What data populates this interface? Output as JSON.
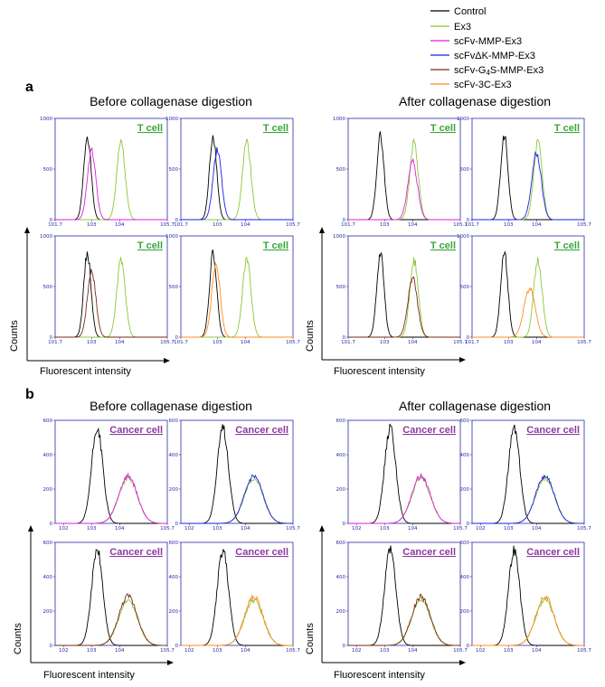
{
  "legend": [
    {
      "label": "Control",
      "color": "#000000"
    },
    {
      "label": "Ex3",
      "color": "#8cc83c"
    },
    {
      "label": "scFv-MMP-Ex3",
      "color": "#e01ee0"
    },
    {
      "label": "scFvΔK-MMP-Ex3",
      "color": "#1e1ee6"
    },
    {
      "label": "scFv-G4S-MMP-Ex3",
      "color": "#7a2a14"
    },
    {
      "label": "scFv-3C-Ex3",
      "color": "#ff8c1e"
    }
  ],
  "sections": {
    "a": {
      "letter": "a",
      "before_title": "Before collagenase digestion",
      "after_title": "After collagenase digestion",
      "cell_label": "T cell",
      "cell_label_color": "#3aa63a"
    },
    "b": {
      "letter": "b",
      "before_title": "Before collagenase digestion",
      "after_title": "After collagenase digestion",
      "cell_label": "Cancer cell",
      "cell_label_color": "#8c3aa0"
    }
  },
  "axis_titles": {
    "x": "Fluorescent intensity",
    "y": "Counts"
  },
  "chart_data": [
    {
      "type": "histogram",
      "section": "a",
      "group": "before",
      "row": 0,
      "col": 0,
      "cell": "T cell",
      "x_scale": "log",
      "xlim_log10": [
        1.7,
        5.7
      ],
      "ylim": [
        0,
        1000
      ],
      "yticks": [
        0,
        500,
        1000
      ],
      "xtick_labels": [
        "10^1.7",
        "10^3",
        "10^4",
        "10^5.7"
      ],
      "series": [
        {
          "name": "Control",
          "peak_log10": 2.85,
          "peak_count": 830,
          "width": 0.13
        },
        {
          "name": "Ex3",
          "peak_log10": 4.05,
          "peak_count": 760,
          "width": 0.15
        },
        {
          "name": "scFv-MMP-Ex3",
          "peak_log10": 3.0,
          "peak_count": 680,
          "width": 0.15
        }
      ]
    },
    {
      "type": "histogram",
      "section": "a",
      "group": "before",
      "row": 0,
      "col": 1,
      "cell": "T cell",
      "x_scale": "log",
      "xlim_log10": [
        1.7,
        5.7
      ],
      "ylim": [
        0,
        1000
      ],
      "yticks": [
        0,
        500,
        1000
      ],
      "xtick_labels": [
        "10^1.7",
        "10^3",
        "10^4",
        "10^5.7"
      ],
      "series": [
        {
          "name": "Control",
          "peak_log10": 2.85,
          "peak_count": 830,
          "width": 0.13
        },
        {
          "name": "Ex3",
          "peak_log10": 4.05,
          "peak_count": 760,
          "width": 0.15
        },
        {
          "name": "scFvΔK-MMP-Ex3",
          "peak_log10": 3.0,
          "peak_count": 700,
          "width": 0.15
        }
      ]
    },
    {
      "type": "histogram",
      "section": "a",
      "group": "before",
      "row": 1,
      "col": 0,
      "cell": "T cell",
      "x_scale": "log",
      "xlim_log10": [
        1.7,
        5.7
      ],
      "ylim": [
        0,
        1000
      ],
      "yticks": [
        0,
        500,
        1000
      ],
      "xtick_labels": [
        "10^1.7",
        "10^3",
        "10^4",
        "10^5.7"
      ],
      "series": [
        {
          "name": "Control",
          "peak_log10": 2.85,
          "peak_count": 830,
          "width": 0.13
        },
        {
          "name": "Ex3",
          "peak_log10": 4.05,
          "peak_count": 760,
          "width": 0.15
        },
        {
          "name": "scFv-G4S-MMP-Ex3",
          "peak_log10": 3.0,
          "peak_count": 660,
          "width": 0.15
        }
      ]
    },
    {
      "type": "histogram",
      "section": "a",
      "group": "before",
      "row": 1,
      "col": 1,
      "cell": "T cell",
      "x_scale": "log",
      "xlim_log10": [
        1.7,
        5.7
      ],
      "ylim": [
        0,
        1000
      ],
      "yticks": [
        0,
        500,
        1000
      ],
      "xtick_labels": [
        "10^1.7",
        "10^3",
        "10^4",
        "10^5.7"
      ],
      "series": [
        {
          "name": "Control",
          "peak_log10": 2.85,
          "peak_count": 830,
          "width": 0.13
        },
        {
          "name": "Ex3",
          "peak_log10": 4.05,
          "peak_count": 760,
          "width": 0.15
        },
        {
          "name": "scFv-3C-Ex3",
          "peak_log10": 2.95,
          "peak_count": 720,
          "width": 0.15
        }
      ]
    },
    {
      "type": "histogram",
      "section": "a",
      "group": "after",
      "row": 0,
      "col": 0,
      "cell": "T cell",
      "x_scale": "log",
      "xlim_log10": [
        1.7,
        5.7
      ],
      "ylim": [
        0,
        1000
      ],
      "yticks": [
        0,
        500,
        1000
      ],
      "xtick_labels": [
        "10^1.7",
        "10^3",
        "10^4",
        "10^5.7"
      ],
      "series": [
        {
          "name": "Control",
          "peak_log10": 2.85,
          "peak_count": 830,
          "width": 0.13
        },
        {
          "name": "Ex3",
          "peak_log10": 4.05,
          "peak_count": 760,
          "width": 0.15
        },
        {
          "name": "scFv-MMP-Ex3",
          "peak_log10": 4.0,
          "peak_count": 580,
          "width": 0.17
        }
      ]
    },
    {
      "type": "histogram",
      "section": "a",
      "group": "after",
      "row": 0,
      "col": 1,
      "cell": "T cell",
      "x_scale": "log",
      "xlim_log10": [
        1.7,
        5.7
      ],
      "ylim": [
        0,
        1000
      ],
      "yticks": [
        0,
        500,
        1000
      ],
      "xtick_labels": [
        "10^1.7",
        "10^3",
        "10^4",
        "10^5.7"
      ],
      "series": [
        {
          "name": "Control",
          "peak_log10": 2.85,
          "peak_count": 830,
          "width": 0.13
        },
        {
          "name": "Ex3",
          "peak_log10": 4.05,
          "peak_count": 760,
          "width": 0.15
        },
        {
          "name": "scFvΔK-MMP-Ex3",
          "peak_log10": 4.0,
          "peak_count": 650,
          "width": 0.17
        }
      ]
    },
    {
      "type": "histogram",
      "section": "a",
      "group": "after",
      "row": 1,
      "col": 0,
      "cell": "T cell",
      "x_scale": "log",
      "xlim_log10": [
        1.7,
        5.7
      ],
      "ylim": [
        0,
        1000
      ],
      "yticks": [
        0,
        500,
        1000
      ],
      "xtick_labels": [
        "10^1.7",
        "10^3",
        "10^4",
        "10^5.7"
      ],
      "series": [
        {
          "name": "Control",
          "peak_log10": 2.85,
          "peak_count": 830,
          "width": 0.13
        },
        {
          "name": "Ex3",
          "peak_log10": 4.05,
          "peak_count": 760,
          "width": 0.15
        },
        {
          "name": "scFv-G4S-MMP-Ex3",
          "peak_log10": 4.0,
          "peak_count": 580,
          "width": 0.17
        }
      ]
    },
    {
      "type": "histogram",
      "section": "a",
      "group": "after",
      "row": 1,
      "col": 1,
      "cell": "T cell",
      "x_scale": "log",
      "xlim_log10": [
        1.7,
        5.7
      ],
      "ylim": [
        0,
        1000
      ],
      "yticks": [
        0,
        500,
        1000
      ],
      "xtick_labels": [
        "10^1.7",
        "10^3",
        "10^4",
        "10^5.7"
      ],
      "series": [
        {
          "name": "Control",
          "peak_log10": 2.85,
          "peak_count": 830,
          "width": 0.13
        },
        {
          "name": "Ex3",
          "peak_log10": 4.05,
          "peak_count": 760,
          "width": 0.15
        },
        {
          "name": "scFv-3C-Ex3",
          "peak_log10": 3.75,
          "peak_count": 480,
          "width": 0.2
        }
      ]
    },
    {
      "type": "histogram",
      "section": "b",
      "group": "before",
      "row": 0,
      "col": 0,
      "cell": "Cancer cell",
      "x_scale": "log",
      "xlim_log10": [
        1.7,
        5.7
      ],
      "ylim": [
        0,
        600
      ],
      "yticks": [
        0,
        200,
        400,
        600
      ],
      "xtick_labels": [
        "10^2",
        "10^3",
        "10^4",
        "10^5.7"
      ],
      "series": [
        {
          "name": "Control",
          "peak_log10": 3.2,
          "peak_count": 555,
          "width": 0.2
        },
        {
          "name": "Ex3",
          "peak_log10": 4.3,
          "peak_count": 265,
          "width": 0.33
        },
        {
          "name": "scFv-MMP-Ex3",
          "peak_log10": 4.3,
          "peak_count": 275,
          "width": 0.33
        }
      ]
    },
    {
      "type": "histogram",
      "section": "b",
      "group": "before",
      "row": 0,
      "col": 1,
      "cell": "Cancer cell",
      "x_scale": "log",
      "xlim_log10": [
        1.7,
        5.7
      ],
      "ylim": [
        0,
        600
      ],
      "yticks": [
        0,
        200,
        400,
        600
      ],
      "xtick_labels": [
        "10^2",
        "10^3",
        "10^4",
        "10^5.7"
      ],
      "series": [
        {
          "name": "Control",
          "peak_log10": 3.2,
          "peak_count": 555,
          "width": 0.2
        },
        {
          "name": "Ex3",
          "peak_log10": 4.3,
          "peak_count": 265,
          "width": 0.33
        },
        {
          "name": "scFvΔK-MMP-Ex3",
          "peak_log10": 4.3,
          "peak_count": 275,
          "width": 0.33
        }
      ]
    },
    {
      "type": "histogram",
      "section": "b",
      "group": "before",
      "row": 1,
      "col": 0,
      "cell": "Cancer cell",
      "x_scale": "log",
      "xlim_log10": [
        1.7,
        5.7
      ],
      "ylim": [
        0,
        600
      ],
      "yticks": [
        0,
        200,
        400,
        600
      ],
      "xtick_labels": [
        "10^2",
        "10^3",
        "10^4",
        "10^5.7"
      ],
      "series": [
        {
          "name": "Control",
          "peak_log10": 3.2,
          "peak_count": 555,
          "width": 0.2
        },
        {
          "name": "Ex3",
          "peak_log10": 4.3,
          "peak_count": 265,
          "width": 0.33
        },
        {
          "name": "scFv-G4S-MMP-Ex3",
          "peak_log10": 4.3,
          "peak_count": 285,
          "width": 0.33
        }
      ]
    },
    {
      "type": "histogram",
      "section": "b",
      "group": "before",
      "row": 1,
      "col": 1,
      "cell": "Cancer cell",
      "x_scale": "log",
      "xlim_log10": [
        1.7,
        5.7
      ],
      "ylim": [
        0,
        600
      ],
      "yticks": [
        0,
        200,
        400,
        600
      ],
      "xtick_labels": [
        "10^2",
        "10^3",
        "10^4",
        "10^5.7"
      ],
      "series": [
        {
          "name": "Control",
          "peak_log10": 3.2,
          "peak_count": 555,
          "width": 0.2
        },
        {
          "name": "Ex3",
          "peak_log10": 4.3,
          "peak_count": 265,
          "width": 0.33
        },
        {
          "name": "scFv-3C-Ex3",
          "peak_log10": 4.3,
          "peak_count": 285,
          "width": 0.33
        }
      ]
    },
    {
      "type": "histogram",
      "section": "b",
      "group": "after",
      "row": 0,
      "col": 0,
      "cell": "Cancer cell",
      "x_scale": "log",
      "xlim_log10": [
        1.7,
        5.7
      ],
      "ylim": [
        0,
        600
      ],
      "yticks": [
        0,
        200,
        400,
        600
      ],
      "xtick_labels": [
        "10^2",
        "10^3",
        "10^4",
        "10^5.7"
      ],
      "series": [
        {
          "name": "Control",
          "peak_log10": 3.2,
          "peak_count": 555,
          "width": 0.2
        },
        {
          "name": "Ex3",
          "peak_log10": 4.3,
          "peak_count": 265,
          "width": 0.33
        },
        {
          "name": "scFv-MMP-Ex3",
          "peak_log10": 4.3,
          "peak_count": 275,
          "width": 0.33
        }
      ]
    },
    {
      "type": "histogram",
      "section": "b",
      "group": "after",
      "row": 0,
      "col": 1,
      "cell": "Cancer cell",
      "x_scale": "log",
      "xlim_log10": [
        1.7,
        5.7
      ],
      "ylim": [
        0,
        600
      ],
      "yticks": [
        0,
        200,
        400,
        600
      ],
      "xtick_labels": [
        "10^2",
        "10^3",
        "10^4",
        "10^5.7"
      ],
      "series": [
        {
          "name": "Control",
          "peak_log10": 3.2,
          "peak_count": 555,
          "width": 0.2
        },
        {
          "name": "Ex3",
          "peak_log10": 4.3,
          "peak_count": 265,
          "width": 0.33
        },
        {
          "name": "scFvΔK-MMP-Ex3",
          "peak_log10": 4.3,
          "peak_count": 275,
          "width": 0.33
        }
      ]
    },
    {
      "type": "histogram",
      "section": "b",
      "group": "after",
      "row": 1,
      "col": 0,
      "cell": "Cancer cell",
      "x_scale": "log",
      "xlim_log10": [
        1.7,
        5.7
      ],
      "ylim": [
        0,
        600
      ],
      "yticks": [
        0,
        200,
        400,
        600
      ],
      "xtick_labels": [
        "10^2",
        "10^3",
        "10^4",
        "10^5.7"
      ],
      "series": [
        {
          "name": "Control",
          "peak_log10": 3.2,
          "peak_count": 555,
          "width": 0.2
        },
        {
          "name": "Ex3",
          "peak_log10": 4.3,
          "peak_count": 265,
          "width": 0.33
        },
        {
          "name": "scFv-G4S-MMP-Ex3",
          "peak_log10": 4.3,
          "peak_count": 285,
          "width": 0.33
        }
      ]
    },
    {
      "type": "histogram",
      "section": "b",
      "group": "after",
      "row": 1,
      "col": 1,
      "cell": "Cancer cell",
      "x_scale": "log",
      "xlim_log10": [
        1.7,
        5.7
      ],
      "ylim": [
        0,
        600
      ],
      "yticks": [
        0,
        200,
        400,
        600
      ],
      "xtick_labels": [
        "10^2",
        "10^3",
        "10^4",
        "10^5.7"
      ],
      "series": [
        {
          "name": "Control",
          "peak_log10": 3.2,
          "peak_count": 555,
          "width": 0.2
        },
        {
          "name": "Ex3",
          "peak_log10": 4.3,
          "peak_count": 265,
          "width": 0.33
        },
        {
          "name": "scFv-3C-Ex3",
          "peak_log10": 4.3,
          "peak_count": 285,
          "width": 0.33
        }
      ]
    }
  ]
}
